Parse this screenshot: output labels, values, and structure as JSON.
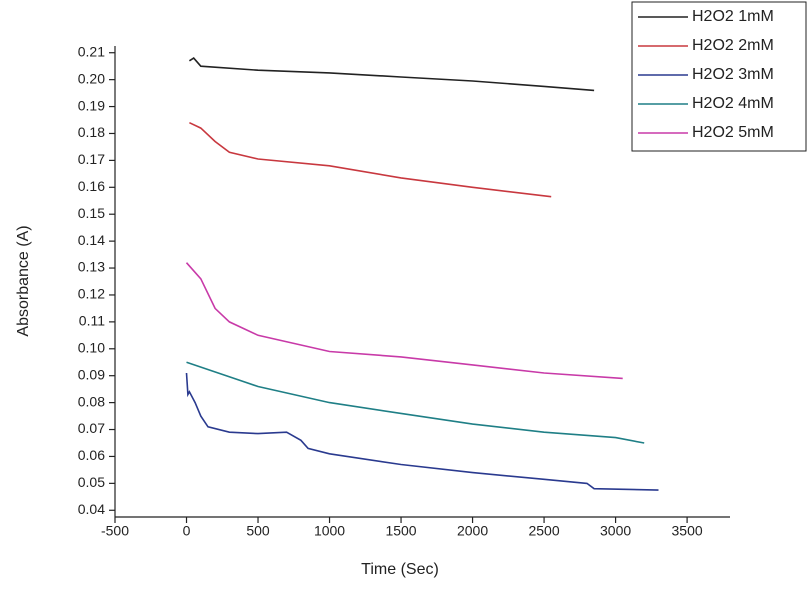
{
  "chart_data": {
    "type": "line",
    "x_label": "Time (Sec)",
    "y_label": "Absorbance (A)",
    "xlim": [
      -500,
      3800
    ],
    "ylim": [
      0.0375,
      0.2125
    ],
    "xticks": [
      -500,
      0,
      500,
      1000,
      1500,
      2000,
      2500,
      3000,
      3500
    ],
    "yticks": [
      0.04,
      0.05,
      0.06,
      0.07,
      0.08,
      0.09,
      {
        "value": 0.1,
        "label": "0.10"
      },
      0.11,
      0.12,
      0.13,
      0.14,
      0.15,
      0.16,
      0.17,
      0.18,
      0.19,
      {
        "value": 0.2,
        "label": "0.20"
      },
      0.21
    ],
    "legend": "upper right",
    "series": [
      {
        "name": "H2O2 1mM",
        "color": "#222222",
        "x": [
          20,
          50,
          100,
          500,
          1000,
          1500,
          2000,
          2500,
          2850
        ],
        "values": [
          0.207,
          0.208,
          0.205,
          0.2035,
          0.2025,
          0.201,
          0.1995,
          0.1975,
          0.196
        ]
      },
      {
        "name": "H2O2 2mM",
        "color": "#c8383f",
        "x": [
          20,
          100,
          200,
          300,
          500,
          1000,
          1500,
          2000,
          2550
        ],
        "values": [
          0.184,
          0.182,
          0.177,
          0.173,
          0.1705,
          0.168,
          0.1635,
          0.16,
          0.1565
        ]
      },
      {
        "name": "H2O2 3mM",
        "color": "#2a3a8f",
        "x": [
          0,
          10,
          20,
          60,
          100,
          150,
          300,
          500,
          700,
          800,
          850,
          1000,
          1500,
          2000,
          2500,
          2800,
          2850,
          3300
        ],
        "values": [
          0.091,
          0.083,
          0.084,
          0.08,
          0.075,
          0.071,
          0.069,
          0.0685,
          0.069,
          0.066,
          0.063,
          0.061,
          0.057,
          0.054,
          0.0515,
          0.05,
          0.048,
          0.0475
        ]
      },
      {
        "name": "H2O2 4mM",
        "color": "#1f7f86",
        "x": [
          0,
          500,
          1000,
          1500,
          2000,
          2500,
          3000,
          3200
        ],
        "values": [
          0.095,
          0.086,
          0.08,
          0.076,
          0.072,
          0.069,
          0.067,
          0.065
        ]
      },
      {
        "name": "H2O2 5mM",
        "color": "#c83aa8",
        "x": [
          0,
          100,
          200,
          300,
          500,
          1000,
          1500,
          2000,
          2500,
          3050
        ],
        "values": [
          0.132,
          0.126,
          0.115,
          0.11,
          0.105,
          0.099,
          0.097,
          0.094,
          0.091,
          0.089
        ]
      }
    ]
  }
}
